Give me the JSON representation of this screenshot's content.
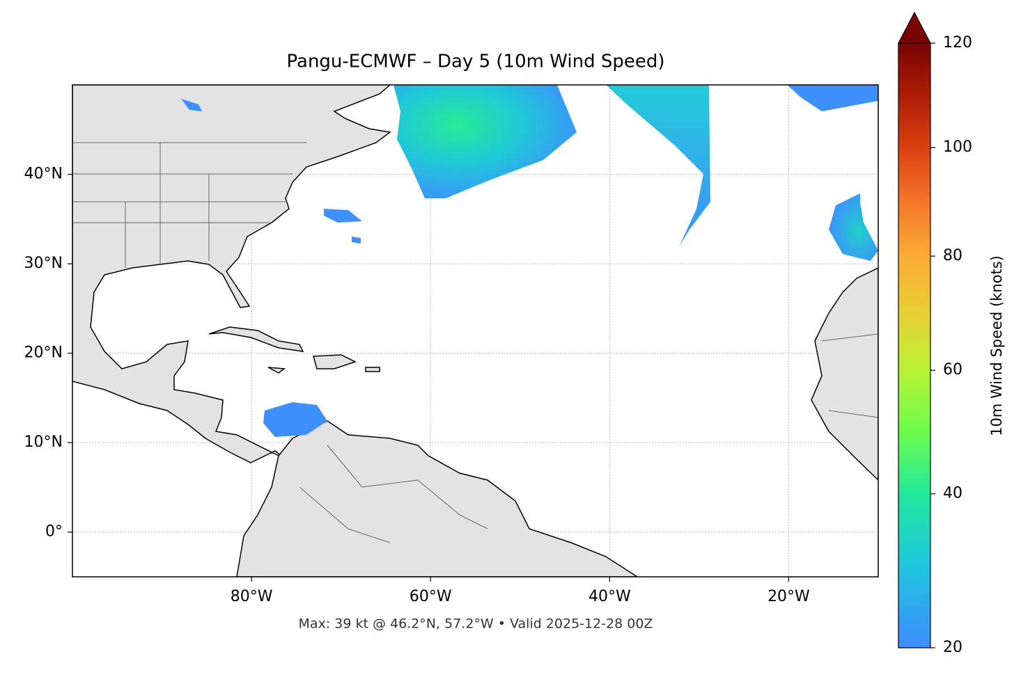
{
  "chart_data": {
    "type": "map",
    "title": "Pangu-ECMWF – Day 5 (10m Wind Speed)",
    "footer": "Max: 39 kt @ 46.2°N, 57.2°W • Valid 2025-12-28 00Z",
    "xlim": [
      -100,
      -10
    ],
    "ylim": [
      -5,
      50
    ],
    "xticks": [
      {
        "value": -80,
        "label": "80°W"
      },
      {
        "value": -60,
        "label": "60°W"
      },
      {
        "value": -40,
        "label": "40°W"
      },
      {
        "value": -20,
        "label": "20°W"
      }
    ],
    "yticks": [
      {
        "value": 0,
        "label": "0°"
      },
      {
        "value": 10,
        "label": "10°N"
      },
      {
        "value": 20,
        "label": "20°N"
      },
      {
        "value": 30,
        "label": "30°N"
      },
      {
        "value": 40,
        "label": "40°N"
      }
    ],
    "grid": true,
    "colorbar": {
      "label": "10m Wind Speed (knots)",
      "lim": [
        20,
        120
      ],
      "ticks": [
        20,
        40,
        60,
        80,
        100,
        120
      ],
      "extend": "max",
      "colors": [
        "#3f8cfe",
        "#1fc8dc",
        "#21e99a",
        "#6ffc4c",
        "#b8f234",
        "#e8cf35",
        "#fbac33",
        "#f5762a",
        "#da4010",
        "#ac1c04",
        "#7a0403"
      ]
    }
  }
}
